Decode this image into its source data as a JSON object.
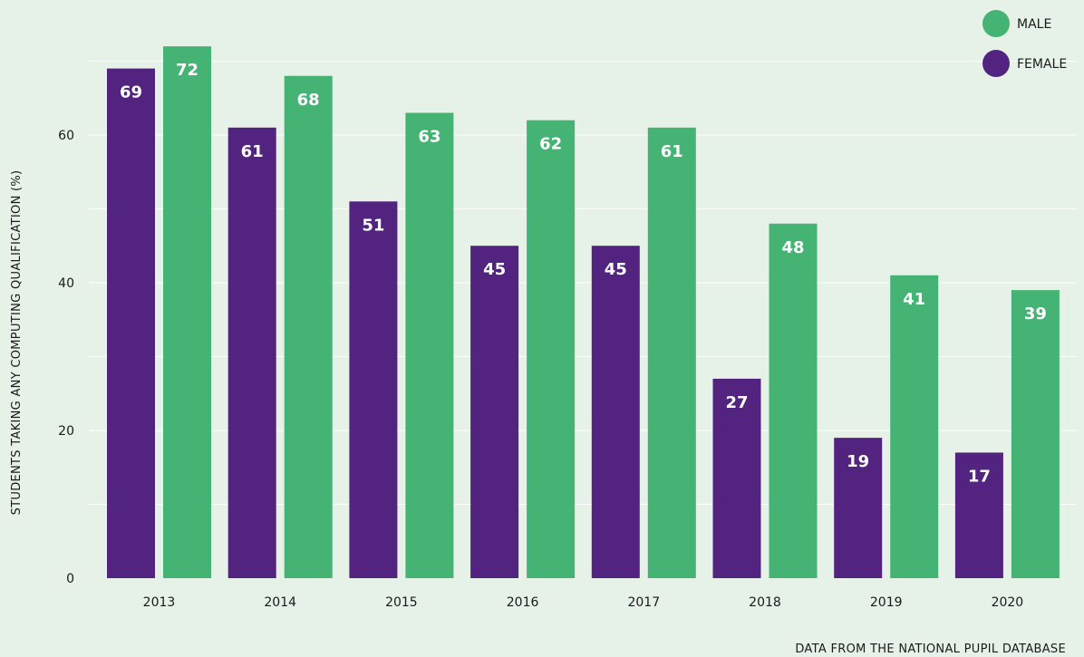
{
  "chart_data": {
    "type": "bar",
    "categories": [
      "2013",
      "2014",
      "2015",
      "2016",
      "2017",
      "2018",
      "2019",
      "2020"
    ],
    "series": [
      {
        "name": "FEMALE",
        "color": "#52247f",
        "values": [
          69,
          61,
          51,
          45,
          45,
          27,
          19,
          17
        ]
      },
      {
        "name": "MALE",
        "color": "#45b373",
        "values": [
          72,
          68,
          63,
          62,
          61,
          48,
          41,
          39
        ]
      }
    ],
    "ylabel": "STUDENTS TAKING ANY COMPUTING QUALIFICATION (%)",
    "xlabel": "",
    "ylim": [
      0,
      73
    ],
    "yticks": [
      0,
      20,
      40,
      60
    ],
    "grid": true,
    "legend": {
      "placement": "top-right",
      "order": [
        "MALE",
        "FEMALE"
      ]
    },
    "source_note": "DATA FROM THE NATIONAL PUPIL DATABASE"
  }
}
